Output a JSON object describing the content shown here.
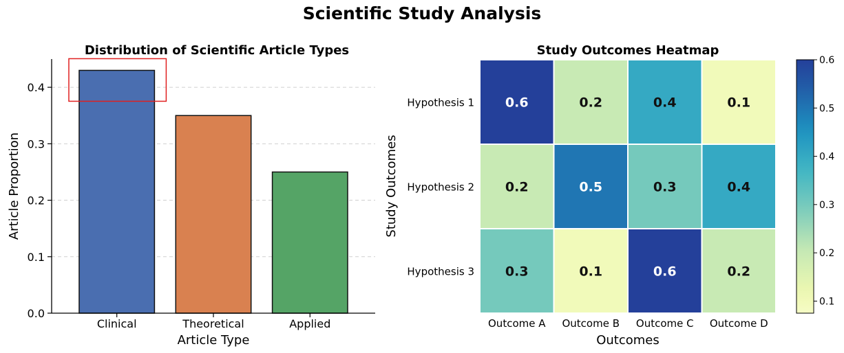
{
  "figure_title": "Scientific Study Analysis",
  "chart_data": [
    {
      "type": "bar",
      "title": "Distribution of Scientific Article Types",
      "xlabel": "Article Type",
      "ylabel": "Article Proportion",
      "categories": [
        "Clinical",
        "Theoretical",
        "Applied"
      ],
      "values": [
        0.43,
        0.35,
        0.25
      ],
      "colors": [
        "#4a6eb0",
        "#d98150",
        "#55a466"
      ],
      "ylim": [
        0,
        0.45
      ],
      "yticks": [
        0.0,
        0.1,
        0.2,
        0.3,
        0.4
      ],
      "grid": "y-dashed",
      "highlight": {
        "category": "Clinical",
        "color": "#e02020"
      }
    },
    {
      "type": "heatmap",
      "title": "Study Outcomes Heatmap",
      "xlabel": "Outcomes",
      "ylabel": "Study Outcomes",
      "columns": [
        "Outcome A",
        "Outcome B",
        "Outcome C",
        "Outcome D"
      ],
      "rows": [
        "Hypothesis 1",
        "Hypothesis 2",
        "Hypothesis 3"
      ],
      "values": [
        [
          0.6,
          0.2,
          0.4,
          0.1
        ],
        [
          0.2,
          0.5,
          0.3,
          0.4
        ],
        [
          0.3,
          0.1,
          0.6,
          0.2
        ]
      ],
      "cell_labels": [
        [
          "0.6",
          "0.2",
          "0.4",
          "0.1"
        ],
        [
          "0.2",
          "0.5",
          "0.3",
          "0.4"
        ],
        [
          "0.3",
          "0.1",
          "0.6",
          "0.2"
        ]
      ],
      "colormap": "YlGnBu",
      "colorbar": {
        "range": [
          0.075,
          0.6
        ],
        "ticks": [
          0.1,
          0.2,
          0.3,
          0.4,
          0.5,
          0.6
        ]
      }
    }
  ]
}
